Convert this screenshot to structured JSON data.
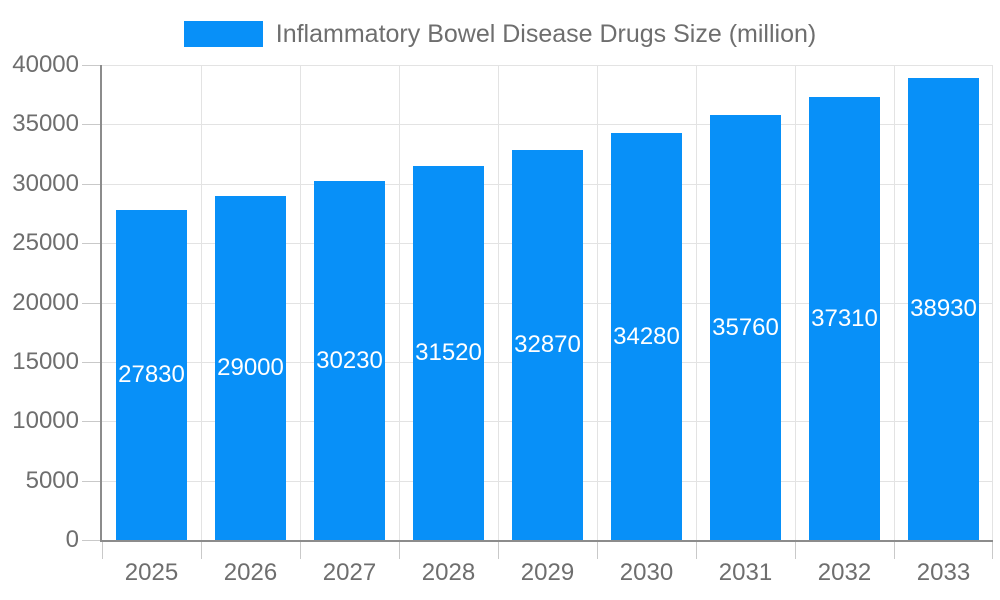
{
  "chart_data": {
    "type": "bar",
    "legend": "Inflammatory Bowel Disease Drugs Size (million)",
    "legend_position": "top",
    "categories": [
      "2025",
      "2026",
      "2027",
      "2028",
      "2029",
      "2030",
      "2031",
      "2032",
      "2033"
    ],
    "values": [
      27830,
      29000,
      30230,
      31520,
      32870,
      34280,
      35760,
      37310,
      38930
    ],
    "ylim": [
      0,
      40000
    ],
    "ytick_interval": 5000,
    "ytick_labels": [
      "0",
      "5000",
      "10000",
      "15000",
      "20000",
      "25000",
      "30000",
      "35000",
      "40000"
    ],
    "grid": true,
    "value_label_position": "inside-middle",
    "colors": {
      "bar": "#0890F8",
      "value_label": "#FFFFFF",
      "axis_line": "#8C8C8C",
      "grid_line": "#E3E3E3",
      "tick_line": "#C9C9C9",
      "text": "#6E6E6E",
      "background": "#FFFFFF"
    }
  }
}
